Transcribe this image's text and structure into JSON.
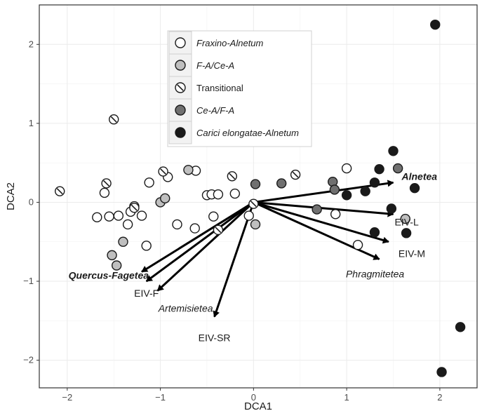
{
  "chart_data": {
    "type": "scatter",
    "title": "",
    "xlabel": "DCA1",
    "ylabel": "DCA2",
    "xlim": [
      -2.3,
      2.4
    ],
    "ylim": [
      -2.35,
      2.5
    ],
    "xticks": [
      -2,
      -1,
      0,
      1,
      2
    ],
    "yticks": [
      -2,
      -1,
      0,
      1,
      2
    ],
    "x_tick_labels": [
      "−2",
      "−1",
      "0",
      "1",
      "2"
    ],
    "y_tick_labels": [
      "−2",
      "−1",
      "0",
      "1",
      "2"
    ],
    "grid": true,
    "legend_position": "top-left inside",
    "series": [
      {
        "name": "Fraxino-Alnetum",
        "marker": "open",
        "fill": "#ffffff",
        "points": [
          [
            -1.68,
            -0.19
          ],
          [
            -1.55,
            -0.18
          ],
          [
            -1.45,
            -0.17
          ],
          [
            -1.28,
            -0.05
          ],
          [
            -1.32,
            -0.12
          ],
          [
            -1.2,
            -0.17
          ],
          [
            -1.35,
            -0.28
          ],
          [
            -1.15,
            -0.55
          ],
          [
            -1.12,
            0.25
          ],
          [
            -0.92,
            0.32
          ],
          [
            -0.82,
            -0.28
          ],
          [
            -0.62,
            0.4
          ],
          [
            -0.63,
            -0.33
          ],
          [
            -0.5,
            0.09
          ],
          [
            -0.45,
            0.1
          ],
          [
            -0.43,
            -0.18
          ],
          [
            -0.38,
            0.1
          ],
          [
            -0.2,
            0.11
          ],
          [
            -0.05,
            -0.17
          ],
          [
            1.0,
            0.43
          ],
          [
            0.88,
            -0.15
          ],
          [
            1.12,
            -0.54
          ],
          [
            -1.6,
            0.12
          ]
        ]
      },
      {
        "name": "F-A/Ce-A",
        "marker": "light-grey",
        "fill": "#bfbfbf",
        "points": [
          [
            -1.52,
            -0.67
          ],
          [
            -1.4,
            -0.5
          ],
          [
            -1.47,
            -0.8
          ],
          [
            -1.0,
            0.0
          ],
          [
            -0.95,
            0.05
          ],
          [
            -0.7,
            0.41
          ],
          [
            0.02,
            -0.28
          ],
          [
            1.63,
            -0.21
          ]
        ]
      },
      {
        "name": "Transitional",
        "marker": "hatched",
        "fill": "#ffffff",
        "points": [
          [
            -2.08,
            0.14
          ],
          [
            -1.5,
            1.05
          ],
          [
            -1.58,
            0.24
          ],
          [
            -1.28,
            -0.07
          ],
          [
            -0.97,
            0.39
          ],
          [
            -0.38,
            -0.35
          ],
          [
            -0.23,
            0.33
          ],
          [
            0.45,
            0.35
          ],
          [
            0.0,
            -0.02
          ]
        ]
      },
      {
        "name": "Ce-A/F-A",
        "marker": "dark-grey",
        "fill": "#707070",
        "points": [
          [
            0.02,
            0.23
          ],
          [
            0.3,
            0.24
          ],
          [
            0.68,
            -0.09
          ],
          [
            0.85,
            0.26
          ],
          [
            0.87,
            0.16
          ],
          [
            1.55,
            0.43
          ]
        ]
      },
      {
        "name": "Carici elongatae-Alnetum",
        "marker": "black",
        "fill": "#1a1a1a",
        "points": [
          [
            1.95,
            2.25
          ],
          [
            2.22,
            -1.58
          ],
          [
            2.02,
            -2.15
          ],
          [
            1.5,
            0.65
          ],
          [
            1.35,
            0.42
          ],
          [
            1.0,
            0.09
          ],
          [
            1.2,
            0.14
          ],
          [
            1.3,
            0.25
          ],
          [
            1.48,
            -0.08
          ],
          [
            1.73,
            0.18
          ],
          [
            1.3,
            -0.38
          ],
          [
            1.64,
            -0.39
          ]
        ]
      }
    ],
    "vectors": [
      {
        "label": "Alnetea",
        "x": 1.5,
        "y": 0.25,
        "style": "bold-italic"
      },
      {
        "label": "EIV-L",
        "x": 1.5,
        "y": -0.15,
        "style": "plain"
      },
      {
        "label": "EIV-M",
        "x": 1.45,
        "y": -0.5,
        "style": "plain"
      },
      {
        "label": "Phragmitetea",
        "x": 1.35,
        "y": -0.72,
        "style": "italic"
      },
      {
        "label": "Quercus-Fagetea",
        "x": -1.2,
        "y": -0.88,
        "style": "bold-italic"
      },
      {
        "label": "EIV-F",
        "x": -1.15,
        "y": -1.0,
        "style": "plain"
      },
      {
        "label": "Artemisietea",
        "x": -1.03,
        "y": -1.12,
        "style": "italic"
      },
      {
        "label": "EIV-SR",
        "x": -0.42,
        "y": -1.45,
        "style": "plain"
      }
    ]
  }
}
